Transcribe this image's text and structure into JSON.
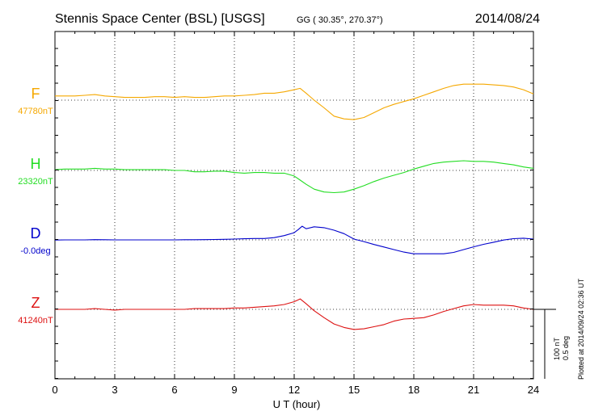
{
  "header": {
    "station": "Stennis Space Center (BSL)  [USGS]",
    "coords": "GG ( 30.35°, 270.37°)",
    "date": "2014/08/24"
  },
  "footer": {
    "plotted": "Plotted at 2014/09/24 02:36 UT"
  },
  "scale": {
    "nt": "100 nT",
    "deg": "0.5 deg"
  },
  "chart_data": {
    "type": "line",
    "xlabel": "U T (hour)",
    "xlim": [
      0,
      24
    ],
    "xticks": [
      0,
      3,
      6,
      9,
      12,
      15,
      18,
      21,
      24
    ],
    "xtick_labels": [
      "0",
      "3",
      "6",
      "9",
      "12",
      "15",
      "18",
      "21",
      "24"
    ],
    "grid": true,
    "scale_bar": {
      "nT": 100,
      "deg": 0.5
    },
    "series": [
      {
        "name": "F",
        "baseline_label": "47780nT",
        "color": "#f5a800",
        "baseline": 47780,
        "unit": "nT",
        "x": [
          0,
          0.5,
          1,
          1.5,
          2,
          2.5,
          3,
          3.5,
          4,
          4.5,
          5,
          5.5,
          6,
          6.5,
          7,
          7.5,
          8,
          8.5,
          9,
          9.5,
          10,
          10.5,
          11,
          11.5,
          12,
          12.3,
          12.6,
          13,
          13.5,
          14,
          14.5,
          15,
          15.5,
          16,
          16.5,
          17,
          17.5,
          18,
          18.5,
          19,
          19.5,
          20,
          20.5,
          21,
          21.5,
          22,
          22.5,
          23,
          23.5,
          24
        ],
        "y": [
          47786,
          47786,
          47786,
          47787,
          47788,
          47786,
          47785,
          47784,
          47784,
          47784,
          47785,
          47785,
          47784,
          47785,
          47784,
          47784,
          47785,
          47786,
          47786,
          47787,
          47788,
          47790,
          47790,
          47792,
          47795,
          47797,
          47790,
          47780,
          47769,
          47757,
          47753,
          47752,
          47755,
          47762,
          47769,
          47774,
          47778,
          47782,
          47787,
          47792,
          47797,
          47801,
          47803,
          47803,
          47803,
          47802,
          47801,
          47799,
          47795,
          47789
        ]
      },
      {
        "name": "H",
        "baseline_label": "23320nT",
        "color": "#22dd22",
        "baseline": 23320,
        "unit": "nT",
        "x": [
          0,
          0.5,
          1,
          1.5,
          2,
          2.5,
          3,
          3.5,
          4,
          4.5,
          5,
          5.5,
          6,
          6.5,
          7,
          7.5,
          8,
          8.5,
          9,
          9.5,
          10,
          10.5,
          11,
          11.5,
          12,
          12.3,
          12.6,
          13,
          13.5,
          14,
          14.5,
          15,
          15.5,
          16,
          16.5,
          17,
          17.5,
          18,
          18.5,
          19,
          19.5,
          20,
          20.5,
          21,
          21.5,
          22,
          22.5,
          23,
          23.5,
          24
        ],
        "y": [
          23321,
          23322,
          23322,
          23322,
          23323,
          23322,
          23322,
          23321,
          23321,
          23321,
          23321,
          23321,
          23320,
          23320,
          23318,
          23318,
          23319,
          23319,
          23317,
          23316,
          23317,
          23317,
          23316,
          23316,
          23312,
          23306,
          23300,
          23293,
          23289,
          23288,
          23289,
          23293,
          23298,
          23304,
          23309,
          23313,
          23317,
          23322,
          23326,
          23330,
          23332,
          23333,
          23334,
          23333,
          23333,
          23332,
          23330,
          23328,
          23325,
          23323
        ]
      },
      {
        "name": "D",
        "baseline_label": "-0.0deg",
        "color": "#0000cc",
        "baseline": -0.0,
        "unit": "deg",
        "x": [
          0,
          0.5,
          1,
          1.5,
          2,
          2.5,
          3,
          3.5,
          4,
          4.5,
          5,
          5.5,
          6,
          6.5,
          7,
          7.5,
          8,
          8.5,
          9,
          9.5,
          10,
          10.5,
          11,
          11.5,
          12,
          12.2,
          12.4,
          12.6,
          13,
          13.5,
          14,
          14.5,
          15,
          15.5,
          16,
          16.5,
          17,
          17.5,
          18,
          18.5,
          19,
          19.5,
          20,
          20.5,
          21,
          21.5,
          22,
          22.5,
          23,
          23.5,
          24
        ],
        "y": [
          -0.001,
          0.0,
          0.0,
          0.0,
          0.002,
          0.001,
          0.0,
          0.0,
          0.0,
          0.0,
          0.0,
          0.0,
          0.0,
          0.001,
          0.001,
          0.002,
          0.003,
          0.004,
          0.006,
          0.008,
          0.01,
          0.01,
          0.016,
          0.031,
          0.052,
          0.074,
          0.098,
          0.08,
          0.094,
          0.088,
          0.07,
          0.045,
          0.006,
          -0.012,
          -0.033,
          -0.051,
          -0.07,
          -0.088,
          -0.1,
          -0.1,
          -0.1,
          -0.1,
          -0.09,
          -0.07,
          -0.05,
          -0.032,
          -0.017,
          -0.001,
          0.009,
          0.012,
          0.006
        ]
      },
      {
        "name": "Z",
        "baseline_label": "41240nT",
        "color": "#dd1111",
        "baseline": 41240,
        "unit": "nT",
        "x": [
          0,
          0.5,
          1,
          1.5,
          2,
          2.5,
          3,
          3.5,
          4,
          4.5,
          5,
          5.5,
          6,
          6.5,
          7,
          7.5,
          8,
          8.5,
          9,
          9.5,
          10,
          10.5,
          11,
          11.5,
          12,
          12.3,
          12.6,
          13,
          13.5,
          14,
          14.5,
          15,
          15.5,
          16,
          16.5,
          17,
          17.5,
          18,
          18.5,
          19,
          19.5,
          20,
          20.5,
          21,
          21.5,
          22,
          22.5,
          23,
          23.5,
          24
        ],
        "y": [
          41240,
          41240,
          41240,
          41240,
          41241,
          41240,
          41239,
          41240,
          41240,
          41240,
          41240,
          41240,
          41240,
          41240,
          41241,
          41241,
          41241,
          41241,
          41242,
          41242,
          41243,
          41244,
          41245,
          41247,
          41251,
          41255,
          41248,
          41238,
          41228,
          41219,
          41214,
          41211,
          41212,
          41215,
          41218,
          41223,
          41226,
          41227,
          41228,
          41232,
          41237,
          41241,
          41245,
          41247,
          41246,
          41246,
          41246,
          41245,
          41242,
          41240
        ]
      }
    ]
  }
}
